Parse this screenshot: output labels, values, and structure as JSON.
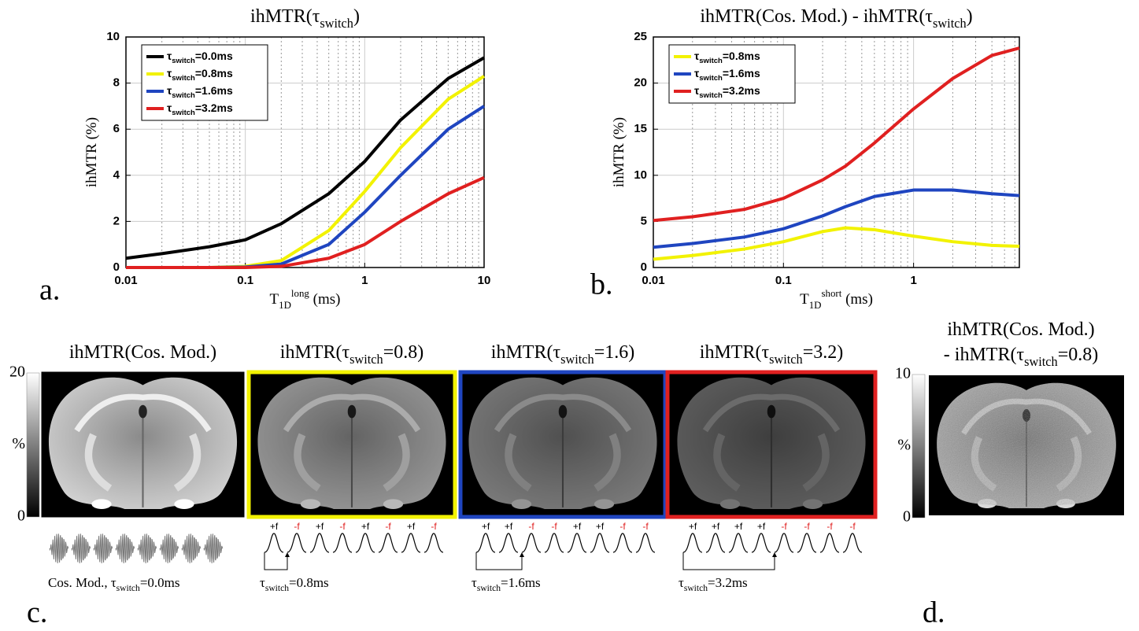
{
  "chart_data": [
    {
      "type": "line",
      "panel_label": "a.",
      "title": [
        "ihMTR(τ",
        {
          "sub": "switch"
        },
        ")"
      ],
      "y_label": [
        "ihMTR (%)"
      ],
      "x_label": [
        "T",
        {
          "sub": "1D"
        },
        {
          "sup": "long"
        },
        " (ms)"
      ],
      "x": [
        0.01,
        0.02,
        0.05,
        0.1,
        0.2,
        0.5,
        1,
        2,
        5,
        10
      ],
      "xlim": [
        0.01,
        10
      ],
      "xticks": [
        0.01,
        0.1,
        1,
        10
      ],
      "log_x": true,
      "ylim": [
        0,
        10
      ],
      "yticks": [
        0,
        2,
        4,
        6,
        8,
        10
      ],
      "grid": true,
      "legend": "upper left",
      "series": [
        {
          "name": [
            "τ",
            {
              "sub": "switch"
            },
            "=0.0ms"
          ],
          "color": "#000000",
          "values": [
            0.4,
            0.6,
            0.9,
            1.2,
            1.9,
            3.2,
            4.6,
            6.4,
            8.2,
            9.1
          ]
        },
        {
          "name": [
            "τ",
            {
              "sub": "switch"
            },
            "=0.8ms"
          ],
          "color": "#f2f200",
          "values": [
            0,
            0,
            0,
            0.05,
            0.3,
            1.6,
            3.3,
            5.2,
            7.3,
            8.3
          ]
        },
        {
          "name": [
            "τ",
            {
              "sub": "switch"
            },
            "=1.6ms"
          ],
          "color": "#1f45c0",
          "values": [
            0,
            0,
            0,
            0.02,
            0.15,
            1.0,
            2.4,
            4.0,
            6.0,
            7.0
          ]
        },
        {
          "name": [
            "τ",
            {
              "sub": "switch"
            },
            "=3.2ms"
          ],
          "color": "#e02020",
          "values": [
            0,
            0,
            0,
            0,
            0.05,
            0.4,
            1.0,
            2.0,
            3.2,
            3.9
          ]
        }
      ]
    },
    {
      "type": "line",
      "panel_label": "b.",
      "title": [
        "ihMTR(Cos. Mod.) - ihMTR(τ",
        {
          "sub": "switch"
        },
        ")"
      ],
      "y_label": [
        "ihMTR (%)"
      ],
      "x_label": [
        "T",
        {
          "sub": "1D"
        },
        {
          "sup": "short"
        },
        " (ms)"
      ],
      "x": [
        0.01,
        0.02,
        0.05,
        0.1,
        0.2,
        0.3,
        0.5,
        1,
        2,
        4,
        6.5
      ],
      "xlim": [
        0.01,
        6.5
      ],
      "xticks": [
        0.01,
        0.1,
        1
      ],
      "log_x": true,
      "ylim": [
        0,
        25
      ],
      "yticks": [
        0,
        5,
        10,
        15,
        20,
        25
      ],
      "grid": true,
      "legend": "upper left",
      "series": [
        {
          "name": [
            "τ",
            {
              "sub": "switch"
            },
            "=0.8ms"
          ],
          "color": "#f2f200",
          "values": [
            0.9,
            1.3,
            2.0,
            2.8,
            3.9,
            4.3,
            4.1,
            3.4,
            2.8,
            2.4,
            2.3
          ]
        },
        {
          "name": [
            "τ",
            {
              "sub": "switch"
            },
            "=1.6ms"
          ],
          "color": "#1f45c0",
          "values": [
            2.2,
            2.6,
            3.3,
            4.2,
            5.6,
            6.6,
            7.7,
            8.4,
            8.4,
            8.0,
            7.8
          ]
        },
        {
          "name": [
            "τ",
            {
              "sub": "switch"
            },
            "=3.2ms"
          ],
          "color": "#e02020",
          "values": [
            5.1,
            5.5,
            6.3,
            7.5,
            9.5,
            11.0,
            13.5,
            17.2,
            20.5,
            23.0,
            23.8
          ]
        }
      ]
    }
  ],
  "maps": {
    "panel_label": "c.",
    "colorbar": {
      "ticks": [
        0,
        20
      ],
      "label": "%"
    },
    "panels": [
      {
        "title": [
          "ihMTR(Cos. Mod.)"
        ],
        "border": null,
        "pulses": [],
        "caption": [
          "Cos. Mod., τ",
          {
            "sub": "switch"
          },
          "=0.0ms"
        ]
      },
      {
        "title": [
          "ihMTR(τ",
          {
            "sub": "switch"
          },
          "=0.8)"
        ],
        "border": "#f2f200",
        "pulses": [
          {
            "label": "+f",
            "color": "#000000"
          },
          {
            "label": "-f",
            "color": "#e02020"
          },
          {
            "label": "+f",
            "color": "#000000"
          },
          {
            "label": "-f",
            "color": "#e02020"
          },
          {
            "label": "+f",
            "color": "#000000"
          },
          {
            "label": "-f",
            "color": "#e02020"
          },
          {
            "label": "+f",
            "color": "#000000"
          },
          {
            "label": "-f",
            "color": "#e02020"
          }
        ],
        "caption": [
          "τ",
          {
            "sub": "switch"
          },
          "=0.8ms"
        ]
      },
      {
        "title": [
          "ihMTR(τ",
          {
            "sub": "switch"
          },
          "=1.6)"
        ],
        "border": "#1f45c0",
        "pulses": [
          {
            "label": "+f",
            "color": "#000000"
          },
          {
            "label": "+f",
            "color": "#000000"
          },
          {
            "label": "-f",
            "color": "#e02020"
          },
          {
            "label": "-f",
            "color": "#e02020"
          },
          {
            "label": "+f",
            "color": "#000000"
          },
          {
            "label": "+f",
            "color": "#000000"
          },
          {
            "label": "-f",
            "color": "#e02020"
          },
          {
            "label": "-f",
            "color": "#e02020"
          }
        ],
        "caption": [
          "τ",
          {
            "sub": "switch"
          },
          "=1.6ms"
        ]
      },
      {
        "title": [
          "ihMTR(τ",
          {
            "sub": "switch"
          },
          "=3.2)"
        ],
        "border": "#e02020",
        "pulses": [
          {
            "label": "+f",
            "color": "#000000"
          },
          {
            "label": "+f",
            "color": "#000000"
          },
          {
            "label": "+f",
            "color": "#000000"
          },
          {
            "label": "+f",
            "color": "#000000"
          },
          {
            "label": "-f",
            "color": "#e02020"
          },
          {
            "label": "-f",
            "color": "#e02020"
          },
          {
            "label": "-f",
            "color": "#e02020"
          },
          {
            "label": "-f",
            "color": "#e02020"
          }
        ],
        "caption": [
          "τ",
          {
            "sub": "switch"
          },
          "=3.2ms"
        ]
      }
    ]
  },
  "difference_map": {
    "panel_label": "d.",
    "title_lines": [
      [
        "ihMTR(Cos. Mod.)"
      ],
      [
        "- ihMTR(τ",
        {
          "sub": "switch"
        },
        "=0.8)"
      ]
    ],
    "colorbar": {
      "ticks": [
        0,
        10
      ],
      "label": "%"
    }
  }
}
